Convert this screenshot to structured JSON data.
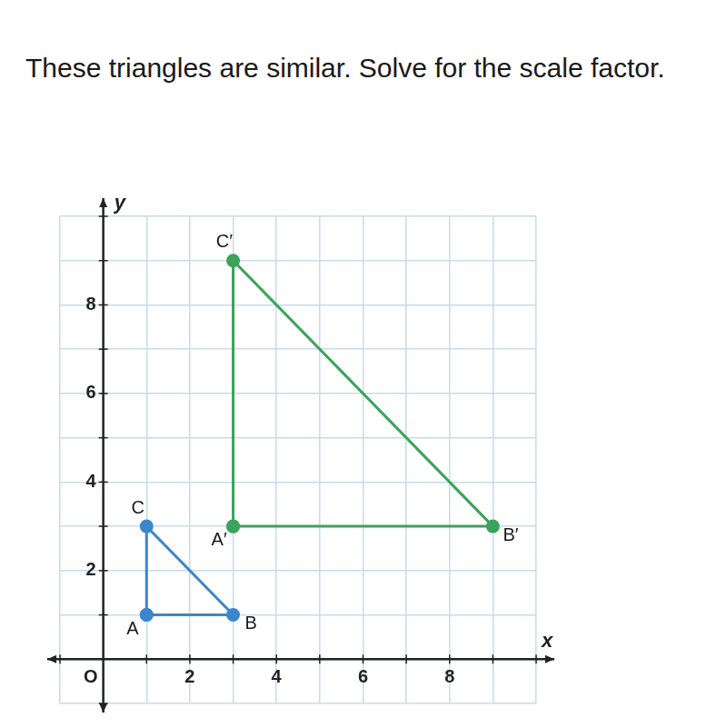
{
  "chart_data": {
    "type": "polygon",
    "title": "These triangles are similar. Solve for the scale factor.",
    "x_label": "x",
    "y_label": "y",
    "xlim": [
      -1,
      10
    ],
    "ylim": [
      -1,
      10
    ],
    "xticks": [
      {
        "value": -1,
        "label": null
      },
      {
        "value": 0,
        "label": "O"
      },
      {
        "value": 1,
        "label": null
      },
      2,
      {
        "value": 3,
        "label": null
      },
      4,
      {
        "value": 5,
        "label": null
      },
      6,
      {
        "value": 7,
        "label": null
      },
      8,
      {
        "value": 9,
        "label": null
      },
      {
        "value": 10,
        "label": null
      }
    ],
    "yticks": [
      {
        "value": -1,
        "label": null
      },
      {
        "value": 0,
        "label": null
      },
      {
        "value": 1,
        "label": null
      },
      2,
      {
        "value": 3,
        "label": null
      },
      4,
      {
        "value": 5,
        "label": null
      },
      6,
      {
        "value": 7,
        "label": null
      },
      8,
      {
        "value": 9,
        "label": null
      },
      {
        "value": 10,
        "label": null
      }
    ],
    "grid": true,
    "series": [
      {
        "color": "#3b86cc",
        "x": [
          1,
          3,
          1
        ],
        "values": [
          1,
          1,
          3
        ],
        "point_labels": [
          "A",
          "B",
          "C"
        ],
        "marker": "circle",
        "line_style": "solid"
      },
      {
        "color": "#3ba35c",
        "x": [
          3,
          9,
          3
        ],
        "values": [
          3,
          3,
          9
        ],
        "point_labels": [
          "A′",
          "B′",
          "C′"
        ],
        "marker": "circle",
        "line_style": "solid"
      }
    ]
  }
}
